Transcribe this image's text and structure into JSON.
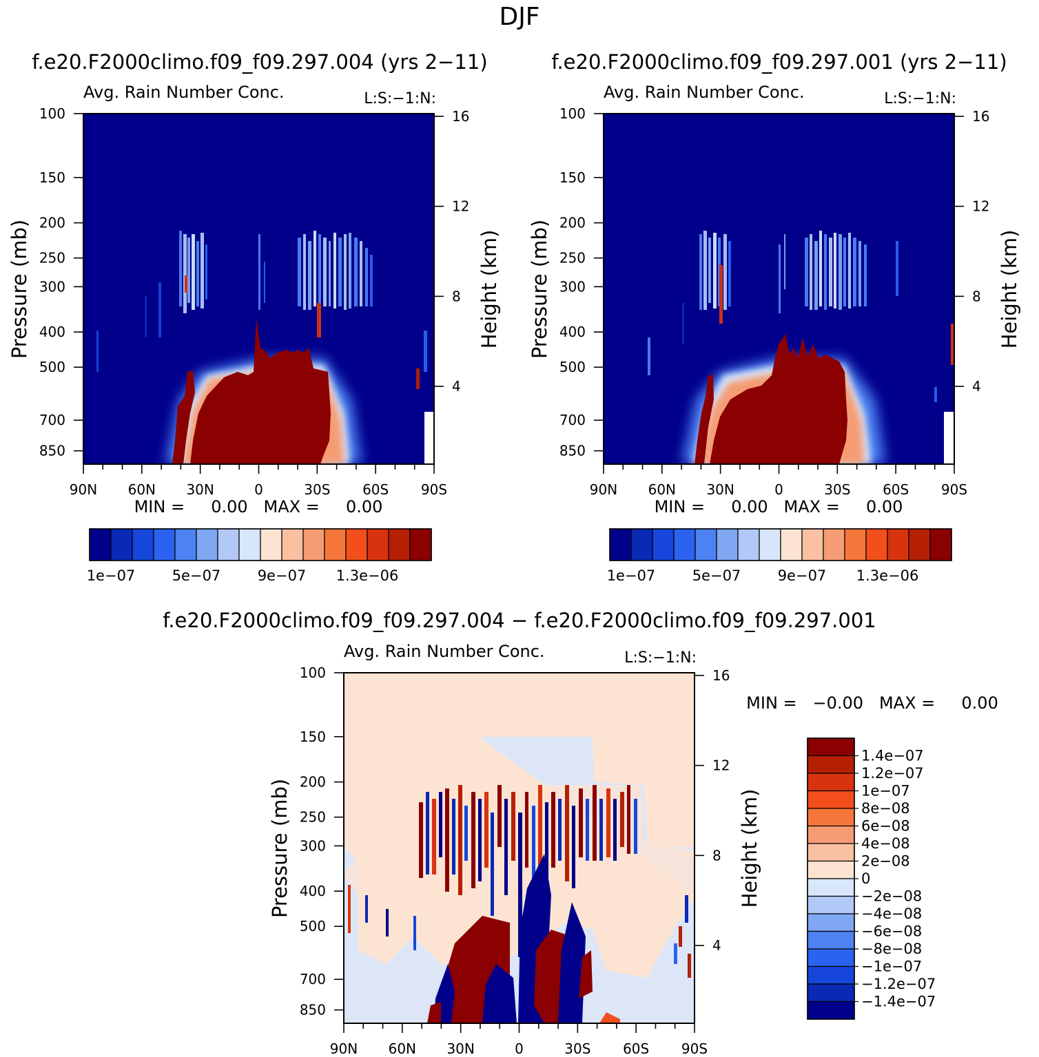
{
  "page": {
    "title": "DJF"
  },
  "panels": [
    {
      "id": "run-004",
      "case_title": "f.e20.F2000climo.f09_f09.297.004 (yrs 2−11)",
      "subtitle_left": "Avg. Rain Number Conc.",
      "subtitle_right": "L:S:−1:N:",
      "y_left_label": "Pressure (mb)",
      "y_right_label": "Height (km)",
      "minmax_text": "MIN =     0.00   MAX =     0.00",
      "colorbar_ticks": [
        "1e−07",
        "5e−07",
        "9e−07",
        "1.3e−06"
      ]
    },
    {
      "id": "run-001",
      "case_title": "f.e20.F2000climo.f09_f09.297.001 (yrs 2−11)",
      "subtitle_left": "Avg. Rain Number Conc.",
      "subtitle_right": "L:S:−1:N:",
      "y_left_label": "Pressure (mb)",
      "y_right_label": "Height (km)",
      "minmax_text": "MIN =     0.00   MAX =     0.00",
      "colorbar_ticks": [
        "1e−07",
        "5e−07",
        "9e−07",
        "1.3e−06"
      ]
    },
    {
      "id": "difference",
      "case_title": "f.e20.F2000climo.f09_f09.297.004 − f.e20.F2000climo.f09_f09.297.001",
      "subtitle_left": "Avg. Rain Number Conc.",
      "subtitle_right": "L:S:−1:N:",
      "y_left_label": "Pressure (mb)",
      "y_right_label": "Height (km)",
      "minmax_text": "MIN =   −0.00   MAX =     0.00",
      "colorbar_labels": [
        "1.4e−07",
        "1.2e−07",
        "1e−07",
        "8e−08",
        "6e−08",
        "4e−08",
        "2e−08",
        "0",
        "−2e−08",
        "−4e−08",
        "−6e−08",
        "−8e−08",
        "−1e−07",
        "−1.2e−07",
        "−1.4e−07"
      ]
    }
  ],
  "colors": {
    "sequential": [
      "#00008b",
      "#0a2ab5",
      "#1646db",
      "#2b62f0",
      "#4e82f2",
      "#7fa7f2",
      "#b2c8f6",
      "#d8e6fb",
      "#fde4d2",
      "#f9c0a1",
      "#f59c74",
      "#f6773c",
      "#f24f1c",
      "#d8330f",
      "#b52005",
      "#8b0000"
    ],
    "diverging": [
      "#8b0000",
      "#b52005",
      "#d8330f",
      "#f24f1c",
      "#f6773c",
      "#f59c74",
      "#f9c0a1",
      "#fde4d2",
      "#d8e6fb",
      "#b2c8f6",
      "#7fa7f2",
      "#4e82f2",
      "#2b62f0",
      "#1646db",
      "#0a2ab5",
      "#00008b"
    ]
  },
  "chart_data": [
    {
      "type": "heatmap",
      "title": "Avg. Rain Number Conc.",
      "case": "f.e20.F2000climo.f09_f09.297.004 (yrs 2−11)",
      "xlabel": "",
      "ylabel": "Pressure (mb)",
      "y2label": "Height (km)",
      "x_ticks": [
        "90N",
        "60N",
        "30N",
        "0",
        "30S",
        "60S",
        "90S"
      ],
      "y_ticks": [
        100,
        150,
        200,
        250,
        300,
        400,
        500,
        700,
        850
      ],
      "y2_ticks": [
        16,
        12,
        8,
        4
      ],
      "ylim": [
        100,
        925
      ],
      "y_scale": "log",
      "colorbar_ticks": [
        "1e−07",
        "5e−07",
        "9e−07",
        "1.3e−06"
      ],
      "min": 0.0,
      "max": 0.0
    },
    {
      "type": "heatmap",
      "title": "Avg. Rain Number Conc.",
      "case": "f.e20.F2000climo.f09_f09.297.001 (yrs 2−11)",
      "xlabel": "",
      "ylabel": "Pressure (mb)",
      "y2label": "Height (km)",
      "x_ticks": [
        "90N",
        "60N",
        "30N",
        "0",
        "30S",
        "60S",
        "90S"
      ],
      "y_ticks": [
        100,
        150,
        200,
        250,
        300,
        400,
        500,
        700,
        850
      ],
      "y2_ticks": [
        16,
        12,
        8,
        4
      ],
      "ylim": [
        100,
        925
      ],
      "y_scale": "log",
      "colorbar_ticks": [
        "1e−07",
        "5e−07",
        "9e−07",
        "1.3e−06"
      ],
      "min": 0.0,
      "max": 0.0
    },
    {
      "type": "heatmap",
      "title": "Avg. Rain Number Conc.",
      "case": "f.e20.F2000climo.f09_f09.297.004 − f.e20.F2000climo.f09_f09.297.001",
      "xlabel": "",
      "ylabel": "Pressure (mb)",
      "y2label": "Height (km)",
      "x_ticks": [
        "90N",
        "60N",
        "30N",
        "0",
        "30S",
        "60S",
        "90S"
      ],
      "y_ticks": [
        100,
        150,
        200,
        250,
        300,
        400,
        500,
        700,
        850
      ],
      "y2_ticks": [
        16,
        12,
        8,
        4
      ],
      "ylim": [
        100,
        925
      ],
      "y_scale": "log",
      "colorbar_levels": [
        1.4e-07,
        1.2e-07,
        1e-07,
        8e-08,
        6e-08,
        4e-08,
        2e-08,
        0,
        -2e-08,
        -4e-08,
        -6e-08,
        -8e-08,
        -1e-07,
        -1.2e-07,
        -1.4e-07
      ],
      "min": -0.0,
      "max": 0.0
    }
  ]
}
